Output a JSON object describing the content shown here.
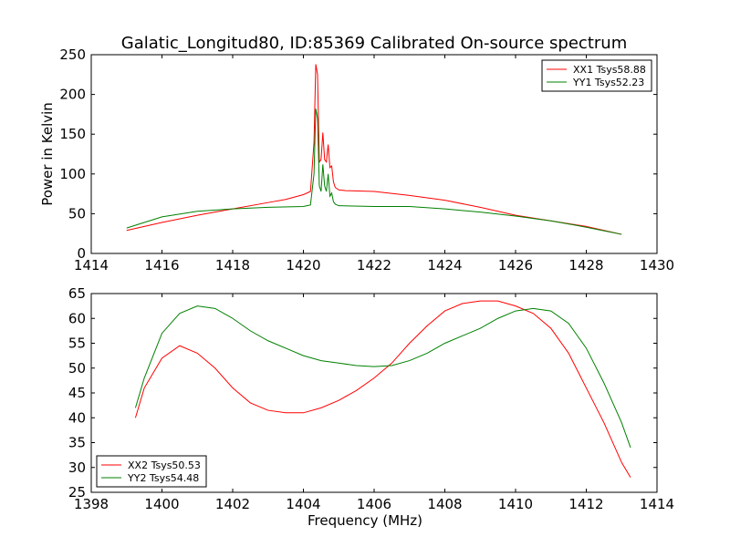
{
  "figure_title": "Galatic_Longitud80, ID:85369 Calibrated On-source spectrum",
  "chart_data": [
    {
      "type": "line",
      "title": "Galatic_Longitud80, ID:85369 Calibrated On-source spectrum",
      "xlabel": "",
      "ylabel": "Power in Kelvin",
      "xlim": [
        1414,
        1430
      ],
      "ylim": [
        0,
        250
      ],
      "xticks": [
        1414,
        1416,
        1418,
        1420,
        1422,
        1424,
        1426,
        1428,
        1430
      ],
      "yticks": [
        0,
        50,
        100,
        150,
        200,
        250
      ],
      "grid": false,
      "legend_position": "upper right",
      "series": [
        {
          "name": "XX1 Tsys58.88",
          "color": "#ff0000",
          "x": [
            1415,
            1416,
            1417,
            1418,
            1419,
            1419.5,
            1420,
            1420.2,
            1420.3,
            1420.35,
            1420.4,
            1420.45,
            1420.5,
            1420.55,
            1420.6,
            1420.65,
            1420.7,
            1420.75,
            1420.8,
            1420.85,
            1420.9,
            1421,
            1421.2,
            1422,
            1423,
            1424,
            1425,
            1426,
            1427,
            1428,
            1429
          ],
          "y": [
            29,
            39,
            48,
            56,
            64,
            68,
            74,
            78,
            140,
            238,
            225,
            115,
            118,
            152,
            118,
            115,
            137,
            108,
            110,
            90,
            83,
            80,
            79,
            78,
            73,
            67,
            58,
            48,
            41,
            34,
            24
          ]
        },
        {
          "name": "YY1 Tsys52.23",
          "color": "#008000",
          "x": [
            1415,
            1416,
            1417,
            1418,
            1419,
            1420,
            1420.2,
            1420.3,
            1420.35,
            1420.4,
            1420.45,
            1420.5,
            1420.55,
            1420.6,
            1420.65,
            1420.7,
            1420.75,
            1420.8,
            1420.85,
            1420.9,
            1421,
            1422,
            1423,
            1424,
            1425,
            1426,
            1427,
            1428,
            1429
          ],
          "y": [
            32,
            46,
            53,
            56,
            58,
            59,
            61,
            100,
            182,
            170,
            85,
            78,
            112,
            85,
            78,
            100,
            72,
            76,
            65,
            62,
            60,
            59,
            59,
            56,
            52,
            47,
            41,
            33,
            24
          ]
        }
      ]
    },
    {
      "type": "line",
      "title": "",
      "xlabel": "Frequency (MHz)",
      "ylabel": "",
      "xlim": [
        1398,
        1414
      ],
      "ylim": [
        25,
        65
      ],
      "xticks": [
        1398,
        1400,
        1402,
        1404,
        1406,
        1408,
        1410,
        1412,
        1414
      ],
      "yticks": [
        25,
        30,
        35,
        40,
        45,
        50,
        55,
        60,
        65
      ],
      "grid": false,
      "legend_position": "lower left",
      "series": [
        {
          "name": "XX2 Tsys50.53",
          "color": "#ff0000",
          "x": [
            1399.25,
            1399.5,
            1400,
            1400.5,
            1401,
            1401.5,
            1402,
            1402.5,
            1403,
            1403.5,
            1404,
            1404.5,
            1405,
            1405.5,
            1406,
            1406.5,
            1407,
            1407.5,
            1408,
            1408.5,
            1409,
            1409.5,
            1410,
            1410.5,
            1411,
            1411.5,
            1412,
            1412.5,
            1413,
            1413.25
          ],
          "y": [
            40,
            46,
            52,
            54.5,
            53,
            50,
            46,
            43,
            41.5,
            41,
            41,
            42,
            43.5,
            45.5,
            48,
            51,
            55,
            58.5,
            61.5,
            63,
            63.5,
            63.5,
            62.5,
            61,
            58,
            53,
            46,
            39,
            31,
            28
          ]
        },
        {
          "name": "YY2 Tsys54.48",
          "color": "#008000",
          "x": [
            1399.25,
            1399.5,
            1400,
            1400.5,
            1401,
            1401.5,
            1402,
            1402.5,
            1403,
            1403.5,
            1404,
            1404.5,
            1405,
            1405.5,
            1406,
            1406.5,
            1407,
            1407.5,
            1408,
            1408.5,
            1409,
            1409.5,
            1410,
            1410.5,
            1411,
            1411.5,
            1412,
            1412.5,
            1413,
            1413.25
          ],
          "y": [
            42,
            48,
            57,
            61,
            62.5,
            62,
            60,
            57.5,
            55.5,
            54,
            52.5,
            51.5,
            51,
            50.5,
            50.3,
            50.5,
            51.5,
            53,
            55,
            56.5,
            58,
            60,
            61.5,
            62,
            61.5,
            59,
            54,
            47,
            39,
            34
          ]
        }
      ]
    }
  ]
}
